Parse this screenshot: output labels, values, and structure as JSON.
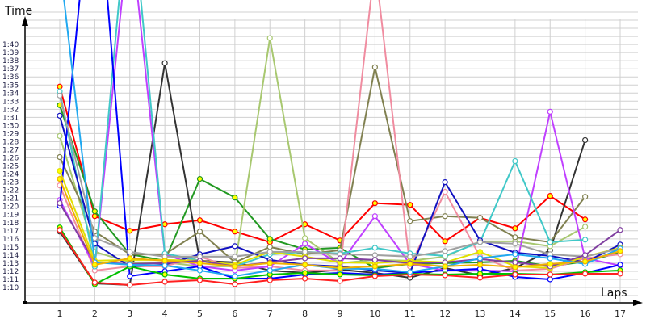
{
  "chart_data": {
    "type": "line",
    "title": "",
    "xlabel": "Laps",
    "ylabel": "Time",
    "x": [
      1,
      2,
      3,
      4,
      5,
      6,
      7,
      8,
      9,
      10,
      11,
      12,
      13,
      14,
      15,
      16,
      17
    ],
    "xtick_labels": [
      "1",
      "2",
      "3",
      "4",
      "5",
      "6",
      "7",
      "8",
      "9",
      "10",
      "11",
      "12",
      "13",
      "14",
      "15",
      "16",
      "17"
    ],
    "ytick_labels": [
      "1:10",
      "1:11",
      "1:12",
      "1:13",
      "1:14",
      "1:15",
      "1:16",
      "1:17",
      "1:18",
      "1:19",
      "1:20",
      "1:21",
      "1:22",
      "1:23",
      "1:24",
      "1:25",
      "1:26",
      "1:27",
      "1:28",
      "1:29",
      "1:30",
      "1:31",
      "1:32",
      "1:33",
      "1:34",
      "1:35",
      "1:36",
      "1:37",
      "1:38",
      "1:39",
      "1:40"
    ],
    "ytick_values_seconds": [
      70,
      71,
      72,
      73,
      74,
      75,
      76,
      77,
      78,
      79,
      80,
      81,
      82,
      83,
      84,
      85,
      86,
      87,
      88,
      89,
      90,
      91,
      92,
      93,
      94,
      95,
      96,
      97,
      98,
      99,
      100
    ],
    "ylim_seconds": [
      68.1,
      105.5
    ],
    "grid": true,
    "unit": "seconds",
    "series": [
      {
        "color": "#ff0000",
        "marker": "#ffff00",
        "values": [
          94.8,
          78.8,
          77.0,
          77.8,
          78.3,
          76.9,
          75.6,
          77.8,
          75.8,
          80.4,
          80.2,
          75.7,
          78.6,
          77.3,
          81.3,
          78.4,
          null
        ]
      },
      {
        "color": "#229922",
        "marker": "#ffff00",
        "values": [
          92.5,
          79.4,
          74.1,
          73.3,
          83.4,
          81.1,
          76.0,
          74.7,
          74.9,
          72.4,
          72.9,
          73.0,
          73.1,
          73.3,
          72.6,
          73.2,
          74.3
        ]
      },
      {
        "color": "#333333",
        "marker": "#ffffff",
        "values": [
          76.9,
          70.5,
          70.3,
          97.7,
          73.3,
          73.1,
          72.1,
          71.8,
          72.2,
          71.8,
          71.2,
          72.4,
          71.5,
          72.4,
          74.6,
          88.2,
          null
        ]
      },
      {
        "color": "#a8c870",
        "marker": "#ffffff",
        "values": [
          88.7,
          74.4,
          73.1,
          73.1,
          72.6,
          72.6,
          100.8,
          76.1,
          73.0,
          73.4,
          73.3,
          73.8,
          75.7,
          75.7,
          75.1,
          77.5,
          null
        ]
      },
      {
        "color": "#808050",
        "marker": "#ffffff",
        "values": [
          86.1,
          76.9,
          74.1,
          74.1,
          76.9,
          73.1,
          75.0,
          74.1,
          74.6,
          97.2,
          78.2,
          78.8,
          78.6,
          76.2,
          75.6,
          81.2,
          null
        ]
      },
      {
        "color": "#f08ca0",
        "marker": "#ffffff",
        "values": [
          82.6,
          72.1,
          72.6,
          72.6,
          73.8,
          72.4,
          72.6,
          72.1,
          72.1,
          110.0,
          72.6,
          81.8,
          73.8,
          72.1,
          72.3,
          73.6,
          74.1
        ]
      },
      {
        "color": "#c040ff",
        "marker": "#ffffff",
        "values": [
          80.8,
          72.6,
          115.0,
          74.1,
          72.6,
          72.1,
          72.6,
          75.4,
          72.9,
          78.8,
          72.9,
          72.1,
          72.1,
          72.0,
          91.7,
          73.6,
          72.7
        ]
      },
      {
        "color": "#40c8c8",
        "marker": "#ffffff",
        "values": [
          94.2,
          72.6,
          120.0,
          74.2,
          73.3,
          72.6,
          74.1,
          74.4,
          74.2,
          74.9,
          74.2,
          73.9,
          75.6,
          85.6,
          75.6,
          75.9,
          null
        ]
      },
      {
        "color": "#1010c0",
        "marker": "#ffffff",
        "values": [
          91.2,
          75.4,
          72.6,
          72.8,
          74.1,
          75.1,
          73.4,
          72.8,
          72.6,
          72.1,
          71.8,
          83.0,
          75.8,
          74.3,
          73.9,
          73.1,
          75.3
        ]
      },
      {
        "color": "#0000ff",
        "marker": "#ffffff",
        "values": [
          80.1,
          125.0,
          71.4,
          72.0,
          72.6,
          71.1,
          71.1,
          71.6,
          71.8,
          71.6,
          71.8,
          72.1,
          72.3,
          71.3,
          71.0,
          71.8,
          72.8
        ]
      },
      {
        "color": "#00c000",
        "marker": "#ffff00",
        "values": [
          77.4,
          70.4,
          72.6,
          71.6,
          71.1,
          71.1,
          71.6,
          71.8,
          71.6,
          71.5,
          71.7,
          71.6,
          71.7,
          71.7,
          71.6,
          71.9,
          72.1
        ]
      },
      {
        "color": "#ff2020",
        "marker": "#ffffff",
        "values": [
          77.1,
          70.6,
          70.3,
          70.7,
          70.9,
          70.4,
          70.9,
          71.1,
          70.8,
          71.4,
          71.6,
          71.5,
          71.2,
          71.6,
          71.6,
          71.7,
          71.7
        ]
      },
      {
        "color": "#e0e000",
        "marker": "#ffff00",
        "values": [
          84.4,
          73.3,
          73.4,
          73.4,
          73.3,
          72.8,
          74.4,
          73.8,
          73.1,
          73.0,
          73.3,
          73.1,
          74.4,
          72.6,
          72.4,
          73.8,
          74.9
        ]
      },
      {
        "color": "#a0a0a0",
        "marker": "#ffffff",
        "values": [
          93.7,
          76.1,
          74.4,
          73.8,
          73.8,
          73.8,
          74.4,
          74.4,
          74.1,
          74.0,
          73.8,
          74.5,
          75.6,
          75.4,
          74.1,
          73.8,
          74.8
        ]
      },
      {
        "color": "#8040a0",
        "marker": "#ffffff",
        "values": [
          80.4,
          73.1,
          72.9,
          73.0,
          73.3,
          72.6,
          73.1,
          73.6,
          73.6,
          73.4,
          73.0,
          73.1,
          73.5,
          73.1,
          72.6,
          74.0,
          77.1
        ]
      },
      {
        "color": "#20a8f0",
        "marker": "#ffffff",
        "values": [
          110.0,
          73.1,
          72.8,
          72.7,
          72.1,
          71.4,
          72.1,
          72.8,
          72.3,
          72.3,
          71.9,
          72.6,
          73.6,
          74.1,
          73.6,
          72.9,
          74.8
        ]
      },
      {
        "color": "#f0b000",
        "marker": "#ffff00",
        "values": [
          83.4,
          72.8,
          73.6,
          73.3,
          73.0,
          72.6,
          73.0,
          72.8,
          72.4,
          72.6,
          72.9,
          72.6,
          72.8,
          72.5,
          72.9,
          73.2,
          74.5
        ]
      }
    ]
  }
}
